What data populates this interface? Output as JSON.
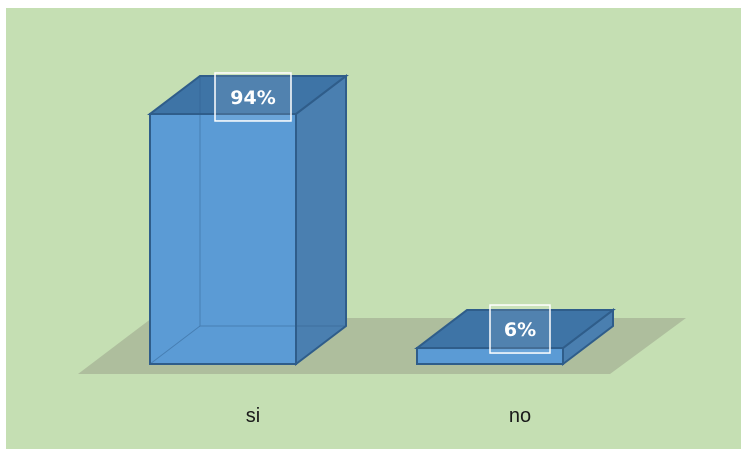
{
  "chart_data": {
    "type": "bar",
    "style": "3d-column",
    "categories": [
      "si",
      "no"
    ],
    "values": [
      94,
      6
    ],
    "data_labels": [
      "94%",
      "6%"
    ],
    "ylim": [
      0,
      100
    ],
    "grid": false,
    "legend": "none",
    "title": "",
    "xlabel": "",
    "ylabel": ""
  },
  "colors": {
    "background": "#c5dfb3",
    "floor": "#a9b899",
    "bar_front": "#5b9bd5",
    "bar_side": "#4a7fb0",
    "bar_top": "#3e74a6",
    "bar_edge": "#2f5d8a",
    "label_box_stroke": "#ffffff"
  }
}
